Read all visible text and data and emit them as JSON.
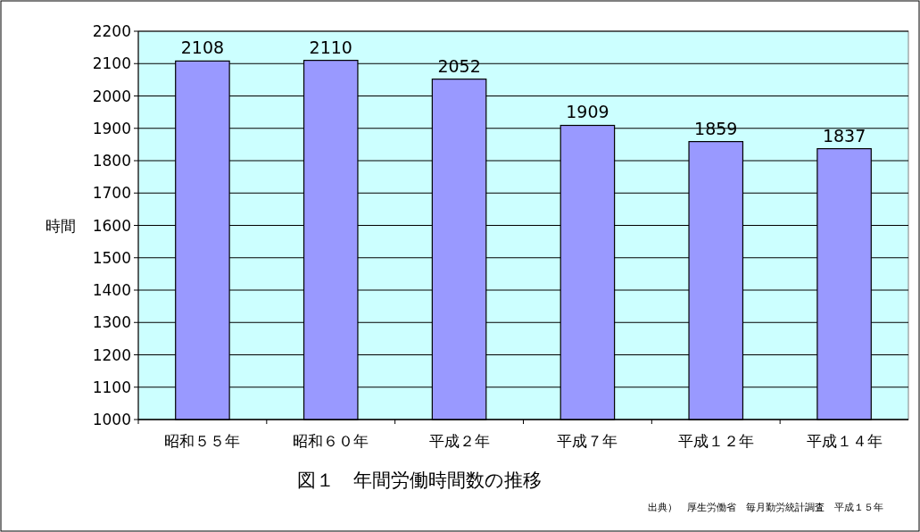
{
  "chart_data": {
    "type": "bar",
    "title": "図１　年間労働時間数の推移",
    "ylabel": "時間",
    "categories": [
      "昭和５５年",
      "昭和６０年",
      "平成２年",
      "平成７年",
      "平成１２年",
      "平成１４年"
    ],
    "values": [
      2108,
      2110,
      2052,
      1909,
      1859,
      1837
    ],
    "color": "#9999ff",
    "ylim": [
      1000,
      2200
    ],
    "yticks": [
      1000,
      1100,
      1200,
      1300,
      1400,
      1500,
      1600,
      1700,
      1800,
      1900,
      2000,
      2100,
      2200
    ],
    "grid": "y",
    "data_labels": true,
    "annotations": [
      "出典）　厚生労働省　毎月勤労統計調査　平成１５年"
    ]
  }
}
